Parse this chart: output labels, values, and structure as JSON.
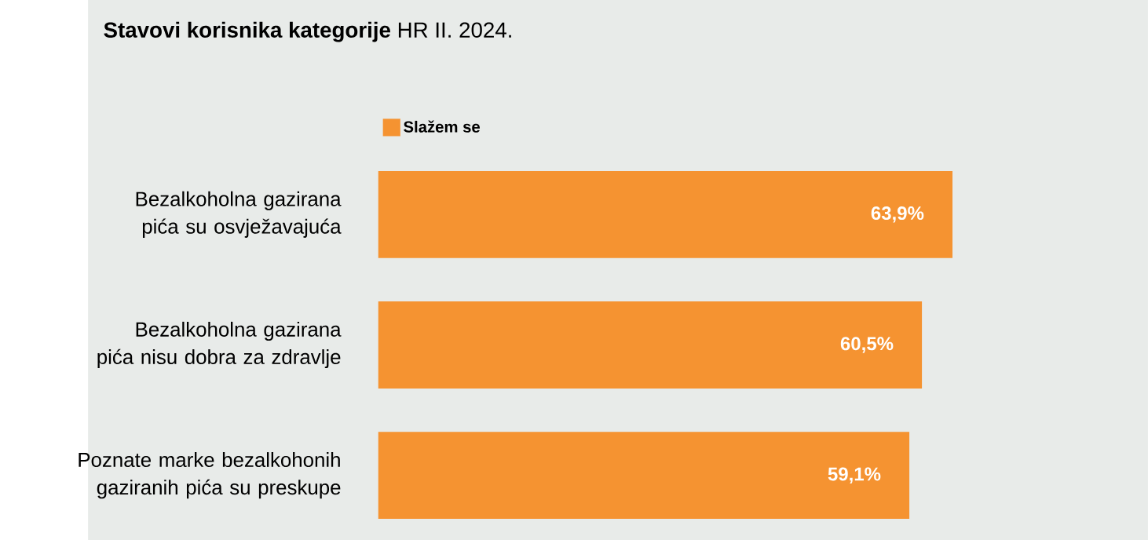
{
  "chart_data": {
    "type": "bar",
    "orientation": "horizontal",
    "title": "**Stavovi korisnika kategorije** HR II. 2024.",
    "categories": [
      "Bezalkoholna gazirana pića su osvježavajuća",
      "Bezalkoholna gazirana pića nisu dobra za zdravlje",
      "Poznate marke bezalkohonih gaziranih pića su preskupe"
    ],
    "series": [
      {
        "name": "Slažem se",
        "color": "#f59331",
        "values": [
          63.9,
          60.5,
          59.1
        ],
        "value_labels": [
          "63,9%",
          "60,5%",
          "59,1%"
        ]
      }
    ],
    "legend": "top left"
  }
}
